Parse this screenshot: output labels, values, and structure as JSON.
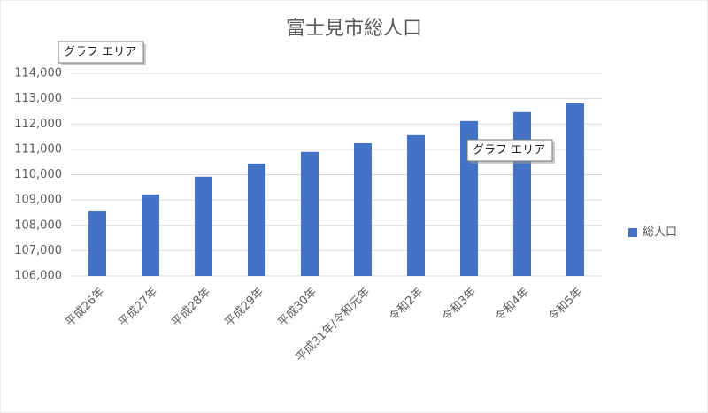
{
  "chart_data": {
    "type": "bar",
    "title": "富士見市総人口",
    "categories": [
      "平成26年",
      "平成27年",
      "平成28年",
      "平成29年",
      "平成30年",
      "平成31年/令和元年",
      "令和2年",
      "令和3年",
      "令和4年",
      "令和5年"
    ],
    "series": [
      {
        "name": "総人口",
        "color": "#4472c4",
        "values": [
          108550,
          109220,
          109920,
          110440,
          110900,
          111240,
          111560,
          112120,
          112470,
          112820
        ]
      }
    ],
    "ylim": [
      106000,
      114000
    ],
    "yticks": [
      {
        "value": 106000,
        "label": "106,000"
      },
      {
        "value": 107000,
        "label": "107,000"
      },
      {
        "value": 108000,
        "label": "108,000"
      },
      {
        "value": 109000,
        "label": "109,000"
      },
      {
        "value": 110000,
        "label": "110,000"
      },
      {
        "value": 111000,
        "label": "111,000"
      },
      {
        "value": 112000,
        "label": "112,000"
      },
      {
        "value": 113000,
        "label": "113,000"
      },
      {
        "value": 114000,
        "label": "114,000"
      }
    ],
    "grid": true,
    "legend": "right",
    "annotations": [
      "グラフ エリア",
      "グラフ エリア"
    ]
  }
}
